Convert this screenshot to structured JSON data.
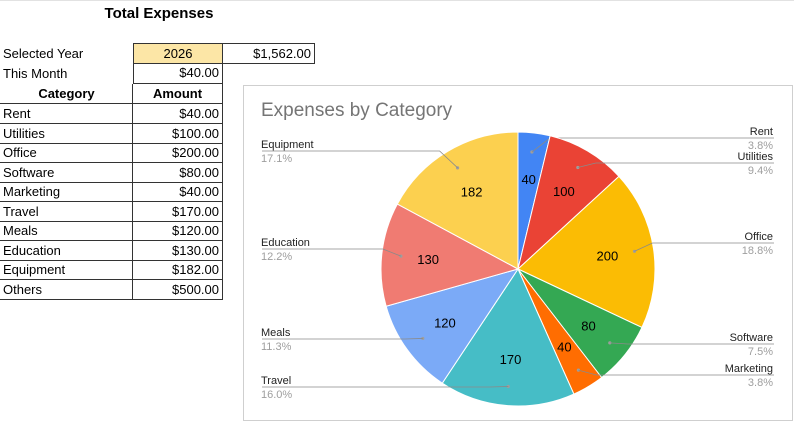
{
  "sheet": {
    "title": "Total Expenses",
    "selected_year_label": "Selected Year",
    "selected_year": "2026",
    "selected_year_total": "$1,562.00",
    "this_month_label": "This Month",
    "this_month_value": "$40.00",
    "table_headers": {
      "category": "Category",
      "amount": "Amount"
    },
    "rows": [
      {
        "category": "Rent",
        "amount": "$40.00"
      },
      {
        "category": "Utilities",
        "amount": "$100.00"
      },
      {
        "category": "Office",
        "amount": "$200.00"
      },
      {
        "category": "Software",
        "amount": "$80.00"
      },
      {
        "category": "Marketing",
        "amount": "$40.00"
      },
      {
        "category": "Travel",
        "amount": "$170.00"
      },
      {
        "category": "Meals",
        "amount": "$120.00"
      },
      {
        "category": "Education",
        "amount": "$130.00"
      },
      {
        "category": "Equipment",
        "amount": "$182.00"
      },
      {
        "category": "Others",
        "amount": "$500.00"
      }
    ]
  },
  "chart_data": {
    "type": "pie",
    "title": "Expenses by Category",
    "slices": [
      {
        "name": "Rent",
        "value": 40,
        "pct": "3.8%",
        "color": "#4285f4"
      },
      {
        "name": "Utilities",
        "value": 100,
        "pct": "9.4%",
        "color": "#ea4335"
      },
      {
        "name": "Office",
        "value": 200,
        "pct": "18.8%",
        "color": "#fbbc04"
      },
      {
        "name": "Software",
        "value": 80,
        "pct": "7.5%",
        "color": "#34a853"
      },
      {
        "name": "Marketing",
        "value": 40,
        "pct": "3.8%",
        "color": "#ff6d01"
      },
      {
        "name": "Travel",
        "value": 170,
        "pct": "16.0%",
        "color": "#46bdc6"
      },
      {
        "name": "Meals",
        "value": 120,
        "pct": "11.3%",
        "color": "#7baaf7"
      },
      {
        "name": "Education",
        "value": 130,
        "pct": "12.2%",
        "color": "#f07b72"
      },
      {
        "name": "Equipment",
        "value": 182,
        "pct": "17.1%",
        "color": "#fcd04f"
      }
    ]
  }
}
